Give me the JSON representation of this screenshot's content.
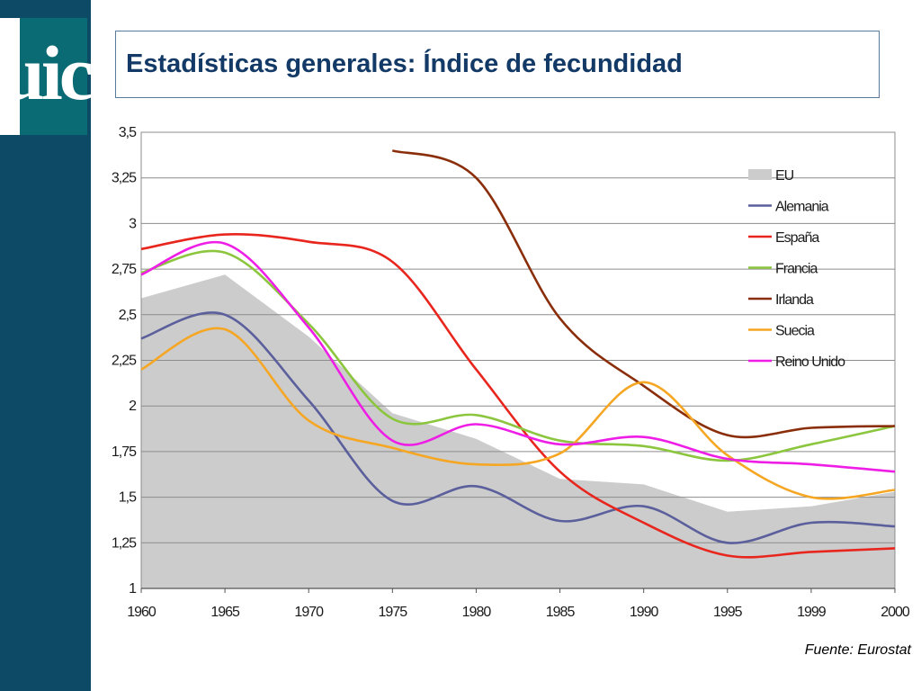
{
  "logo": {
    "text": "uic"
  },
  "title": "Estadísticas generales: Índice de fecundidad",
  "source": "Fuente: Eurostat",
  "chart_data": {
    "type": "line",
    "title": "",
    "xlabel": "",
    "ylabel": "",
    "grid": true,
    "legend_position": "right",
    "categories": [
      "1960",
      "1965",
      "1970",
      "1975",
      "1980",
      "1985",
      "1990",
      "1995",
      "1999",
      "2000"
    ],
    "ylim": [
      1,
      3.5
    ],
    "y_ticks": [
      "1",
      "1,25",
      "1,5",
      "1,75",
      "2",
      "2,25",
      "2,5",
      "2,75",
      "3",
      "3,25",
      "3,5"
    ],
    "y_tick_values": [
      1,
      1.25,
      1.5,
      1.75,
      2,
      2.25,
      2.5,
      2.75,
      3,
      3.25,
      3.5
    ],
    "area": {
      "name": "EU",
      "color": "#cccccc",
      "values": [
        2.59,
        2.72,
        2.38,
        1.96,
        1.82,
        1.6,
        1.57,
        1.42,
        1.45,
        1.53
      ]
    },
    "series": [
      {
        "name": "Alemania",
        "color": "#5b5f9c",
        "values": [
          2.37,
          2.5,
          2.03,
          1.48,
          1.56,
          1.37,
          1.45,
          1.25,
          1.36,
          1.34
        ]
      },
      {
        "name": "España",
        "color": "#e8261e",
        "values": [
          2.86,
          2.94,
          2.9,
          2.79,
          2.2,
          1.64,
          1.36,
          1.18,
          1.2,
          1.22
        ]
      },
      {
        "name": "Francia",
        "color": "#8cc63f",
        "values": [
          2.73,
          2.84,
          2.45,
          1.93,
          1.95,
          1.81,
          1.78,
          1.7,
          1.79,
          1.89
        ]
      },
      {
        "name": "Irlanda",
        "color": "#8a2e0a",
        "values": [
          null,
          null,
          null,
          3.4,
          3.25,
          2.48,
          2.11,
          1.84,
          1.88,
          1.89
        ]
      },
      {
        "name": "Suecia",
        "color": "#f5a623",
        "values": [
          2.2,
          2.42,
          1.92,
          1.77,
          1.68,
          1.74,
          2.13,
          1.73,
          1.5,
          1.54
        ]
      },
      {
        "name": "Reino Unido",
        "color": "#ee1ee6",
        "values": [
          2.72,
          2.89,
          2.43,
          1.81,
          1.9,
          1.79,
          1.83,
          1.71,
          1.68,
          1.64
        ]
      }
    ]
  }
}
